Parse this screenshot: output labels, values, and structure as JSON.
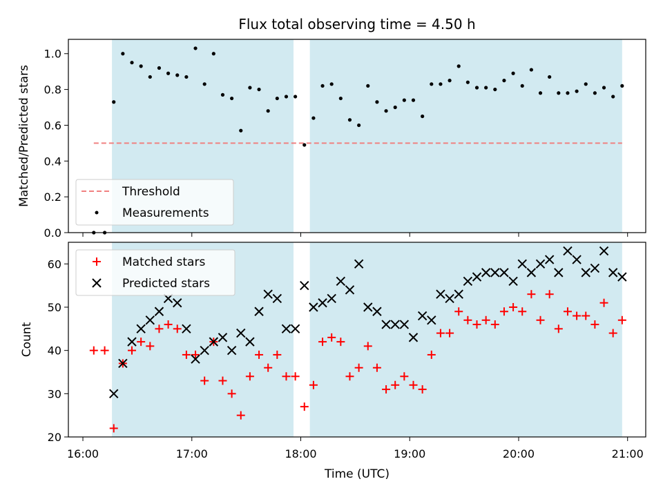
{
  "chart_data": [
    {
      "type": "scatter",
      "title": "Flux total observing time = 4.50 h",
      "xlabel": "",
      "ylabel": "Matched/Predicted stars",
      "xlim": [
        "15:52",
        "21:10"
      ],
      "ylim": [
        0,
        1.08
      ],
      "yticks": [
        0.0,
        0.2,
        0.4,
        0.6,
        0.8,
        1.0
      ],
      "ytick_labels": [
        "0.0",
        "0.2",
        "0.4",
        "0.6",
        "0.8",
        "1.0"
      ],
      "shaded_intervals": [
        [
          "16:16",
          "17:56"
        ],
        [
          "18:05",
          "20:57"
        ]
      ],
      "shade_color": "#add8e6",
      "threshold": {
        "name": "Threshold",
        "value": 0.5,
        "x_range": [
          "16:06",
          "20:57"
        ],
        "color": "#f08080",
        "style": "dashed"
      },
      "series": [
        {
          "name": "Measurements",
          "marker": "dot",
          "color": "#000000",
          "x": [
            "16:06",
            "16:12",
            "16:17",
            "16:22",
            "16:27",
            "16:32",
            "16:37",
            "16:42",
            "16:47",
            "16:52",
            "16:57",
            "17:02",
            "17:07",
            "17:12",
            "17:17",
            "17:22",
            "17:27",
            "17:32",
            "17:37",
            "17:42",
            "17:47",
            "17:52",
            "17:57",
            "18:02",
            "18:07",
            "18:12",
            "18:17",
            "18:22",
            "18:27",
            "18:32",
            "18:37",
            "18:42",
            "18:47",
            "18:52",
            "18:57",
            "19:02",
            "19:07",
            "19:12",
            "19:17",
            "19:22",
            "19:27",
            "19:32",
            "19:37",
            "19:42",
            "19:47",
            "19:52",
            "19:57",
            "20:02",
            "20:07",
            "20:12",
            "20:17",
            "20:22",
            "20:27",
            "20:32",
            "20:37",
            "20:42",
            "20:47",
            "20:52",
            "20:57"
          ],
          "values": [
            0.0,
            0.0,
            0.73,
            1.0,
            0.95,
            0.93,
            0.87,
            0.92,
            0.89,
            0.88,
            0.87,
            1.03,
            0.83,
            1.0,
            0.77,
            0.75,
            0.57,
            0.81,
            0.8,
            0.68,
            0.75,
            0.76,
            0.76,
            0.49,
            0.64,
            0.82,
            0.83,
            0.75,
            0.63,
            0.6,
            0.82,
            0.73,
            0.68,
            0.7,
            0.74,
            0.74,
            0.65,
            0.83,
            0.83,
            0.85,
            0.93,
            0.84,
            0.81,
            0.81,
            0.8,
            0.85,
            0.89,
            0.82,
            0.91,
            0.78,
            0.87,
            0.78,
            0.78,
            0.79,
            0.83,
            0.78,
            0.81,
            0.76,
            0.82
          ]
        }
      ],
      "legend": {
        "position": "lower-left",
        "entries": [
          "Threshold",
          "Measurements"
        ]
      }
    },
    {
      "type": "scatter",
      "title": "",
      "xlabel": "Time (UTC)",
      "ylabel": "Count",
      "xlim": [
        "15:52",
        "21:10"
      ],
      "ylim": [
        20,
        65
      ],
      "yticks": [
        20,
        30,
        40,
        50,
        60
      ],
      "ytick_labels": [
        "20",
        "30",
        "40",
        "50",
        "60"
      ],
      "xticks": [
        "16:00",
        "17:00",
        "18:00",
        "19:00",
        "20:00",
        "21:00"
      ],
      "shaded_intervals": [
        [
          "16:16",
          "17:56"
        ],
        [
          "18:05",
          "20:57"
        ]
      ],
      "shade_color": "#add8e6",
      "series": [
        {
          "name": "Matched stars",
          "marker": "plus",
          "color": "#ff0000",
          "x": [
            "16:06",
            "16:12",
            "16:17",
            "16:22",
            "16:27",
            "16:32",
            "16:37",
            "16:42",
            "16:47",
            "16:52",
            "16:57",
            "17:02",
            "17:07",
            "17:12",
            "17:17",
            "17:22",
            "17:27",
            "17:32",
            "17:37",
            "17:42",
            "17:47",
            "17:52",
            "17:57",
            "18:02",
            "18:07",
            "18:12",
            "18:17",
            "18:22",
            "18:27",
            "18:32",
            "18:37",
            "18:42",
            "18:47",
            "18:52",
            "18:57",
            "19:02",
            "19:07",
            "19:12",
            "19:17",
            "19:22",
            "19:27",
            "19:32",
            "19:37",
            "19:42",
            "19:47",
            "19:52",
            "19:57",
            "20:02",
            "20:07",
            "20:12",
            "20:17",
            "20:22",
            "20:27",
            "20:32",
            "20:37",
            "20:42",
            "20:47",
            "20:52",
            "20:57"
          ],
          "values": [
            40,
            40,
            22,
            37,
            40,
            42,
            41,
            45,
            46,
            45,
            39,
            39,
            33,
            42,
            33,
            30,
            25,
            34,
            39,
            36,
            39,
            34,
            34,
            27,
            32,
            42,
            43,
            42,
            34,
            36,
            41,
            36,
            31,
            32,
            34,
            32,
            31,
            39,
            44,
            44,
            49,
            47,
            46,
            47,
            46,
            49,
            50,
            49,
            53,
            47,
            53,
            45,
            49,
            48,
            48,
            46,
            51,
            44,
            47
          ]
        },
        {
          "name": "Predicted stars",
          "marker": "x",
          "color": "#000000",
          "x": [
            "16:17",
            "16:22",
            "16:27",
            "16:32",
            "16:37",
            "16:42",
            "16:47",
            "16:52",
            "16:57",
            "17:02",
            "17:07",
            "17:12",
            "17:17",
            "17:22",
            "17:27",
            "17:32",
            "17:37",
            "17:42",
            "17:47",
            "17:52",
            "17:57",
            "18:02",
            "18:07",
            "18:12",
            "18:17",
            "18:22",
            "18:27",
            "18:32",
            "18:37",
            "18:42",
            "18:47",
            "18:52",
            "18:57",
            "19:02",
            "19:07",
            "19:12",
            "19:17",
            "19:22",
            "19:27",
            "19:32",
            "19:37",
            "19:42",
            "19:47",
            "19:52",
            "19:57",
            "20:02",
            "20:07",
            "20:12",
            "20:17",
            "20:22",
            "20:27",
            "20:32",
            "20:37",
            "20:42",
            "20:47",
            "20:52",
            "20:57"
          ],
          "values": [
            30,
            37,
            42,
            45,
            47,
            49,
            52,
            51,
            45,
            38,
            40,
            42,
            43,
            40,
            44,
            42,
            49,
            53,
            52,
            45,
            45,
            55,
            50,
            51,
            52,
            56,
            54,
            60,
            50,
            49,
            46,
            46,
            46,
            43,
            48,
            47,
            53,
            52,
            53,
            56,
            57,
            58,
            58,
            58,
            56,
            60,
            58,
            60,
            61,
            58,
            63,
            61,
            58,
            59,
            63,
            58,
            57
          ]
        }
      ],
      "legend": {
        "position": "upper-left",
        "entries": [
          "Matched stars",
          "Predicted stars"
        ]
      }
    }
  ]
}
